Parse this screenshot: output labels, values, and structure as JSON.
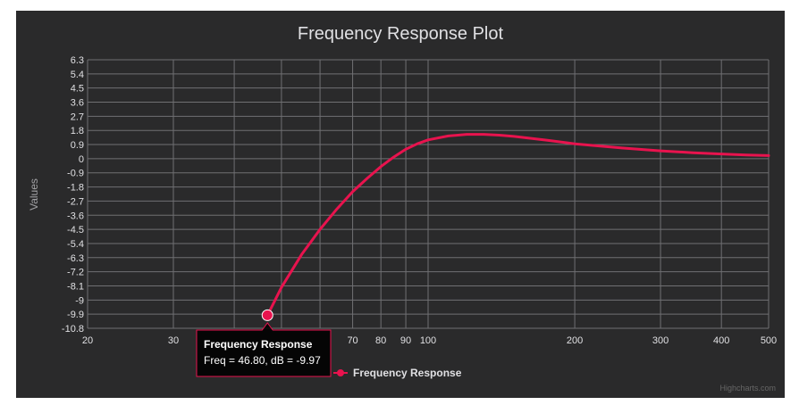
{
  "chart_data": {
    "type": "line",
    "title": "Frequency Response Plot",
    "xlabel": "",
    "ylabel": "Values",
    "x_scale": "log",
    "xlim": [
      20,
      500
    ],
    "ylim": [
      -10.8,
      6.3
    ],
    "x_ticks": [
      20,
      30,
      40,
      50,
      60,
      70,
      80,
      90,
      100,
      200,
      300,
      400,
      500
    ],
    "x_tick_labels": [
      "20",
      "30",
      "",
      "",
      "",
      "70",
      "80",
      "90",
      "100",
      "200",
      "300",
      "400",
      "500"
    ],
    "y_ticks": [
      6.3,
      5.4,
      4.5,
      3.6,
      2.7,
      1.8,
      0.9,
      0,
      -0.9,
      -1.8,
      -2.7,
      -3.6,
      -4.5,
      -5.4,
      -6.3,
      -7.2,
      -8.1,
      -9,
      -9.9,
      -10.8
    ],
    "y_tick_labels": [
      "6.3",
      "5.4",
      "4.5",
      "3.6",
      "2.7",
      "1.8",
      "0.9",
      "0",
      "-0.9",
      "-1.8",
      "-2.7",
      "-3.6",
      "-4.5",
      "-5.4",
      "-6.3",
      "-7.2",
      "-8.1",
      "-9",
      "-9.9",
      "-10.8"
    ],
    "grid": true,
    "legend_position": "bottom-center",
    "series": [
      {
        "name": "Frequency Response",
        "color": "#e8134e",
        "x": [
          46.8,
          50,
          55,
          60,
          65,
          70,
          75,
          80,
          85,
          90,
          95,
          100,
          110,
          120,
          130,
          140,
          150,
          175,
          200,
          250,
          300,
          350,
          400,
          450,
          500
        ],
        "y": [
          -9.97,
          -8.2,
          -6.1,
          -4.5,
          -3.2,
          -2.1,
          -1.25,
          -0.5,
          0.1,
          0.6,
          0.95,
          1.2,
          1.45,
          1.55,
          1.55,
          1.5,
          1.42,
          1.18,
          0.95,
          0.68,
          0.5,
          0.38,
          0.3,
          0.24,
          0.2
        ]
      }
    ],
    "tooltip": {
      "title": "Frequency Response",
      "text": "Freq = 46.80, dB = -9.97",
      "x": 46.8,
      "y": -9.97
    },
    "credits": "Highcharts.com"
  }
}
